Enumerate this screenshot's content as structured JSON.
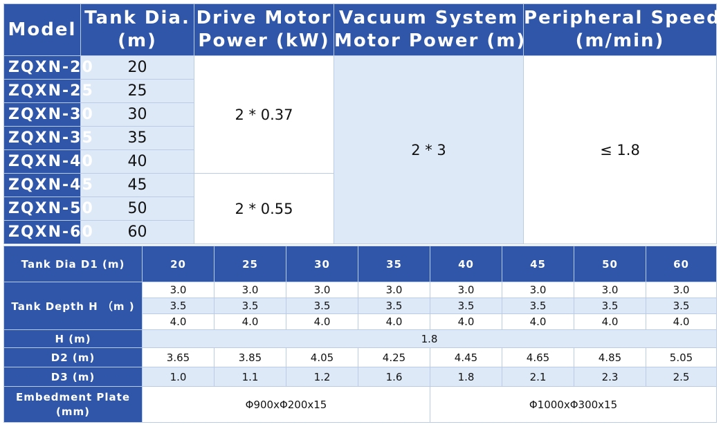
{
  "table1": {
    "headers": {
      "model": "Model",
      "tank_dia": [
        "Tank Dia.",
        "(m)"
      ],
      "drive_power": [
        "Drive Motor",
        "Power (kW)"
      ],
      "vacuum_power": [
        "Vacuum System",
        "Motor Power (m)"
      ],
      "peripheral_speed": [
        "Peripheral Speed",
        "(m/min)"
      ]
    },
    "rows": [
      {
        "model": "ZQXN-20",
        "dia": "20"
      },
      {
        "model": "ZQXN-25",
        "dia": "25"
      },
      {
        "model": "ZQXN-30",
        "dia": "30"
      },
      {
        "model": "ZQXN-35",
        "dia": "35"
      },
      {
        "model": "ZQXN-40",
        "dia": "40"
      },
      {
        "model": "ZQXN-45",
        "dia": "45"
      },
      {
        "model": "ZQXN-50",
        "dia": "50"
      },
      {
        "model": "ZQXN-60",
        "dia": "60"
      }
    ],
    "drive_power_values": [
      "2 * 0.37",
      "2 * 0.55"
    ],
    "vacuum_power_value": "2 * 3",
    "peripheral_speed_value": "≤ 1.8"
  },
  "table2": {
    "labels": {
      "tank_dia": "Tank Dia D1 (m)",
      "tank_depth": "Tank Depth H （m )",
      "h": "H (m)",
      "d2": "D2 (m)",
      "d3": "D3  (m)",
      "plate": [
        "Embedment Plate",
        "(mm)"
      ]
    },
    "diameters": [
      "20",
      "25",
      "30",
      "35",
      "40",
      "45",
      "50",
      "60"
    ],
    "depths": [
      "3.0",
      "3.5",
      "4.0"
    ],
    "h_value": "1.8",
    "d2": [
      "3.65",
      "3.85",
      "4.05",
      "4.25",
      "4.45",
      "4.65",
      "4.85",
      "5.05"
    ],
    "d3": [
      "1.0",
      "1.1",
      "1.2",
      "1.6",
      "1.8",
      "2.1",
      "2.3",
      "2.5"
    ],
    "plates": [
      "Φ900xΦ200x15",
      "Φ1000xΦ300x15"
    ]
  }
}
